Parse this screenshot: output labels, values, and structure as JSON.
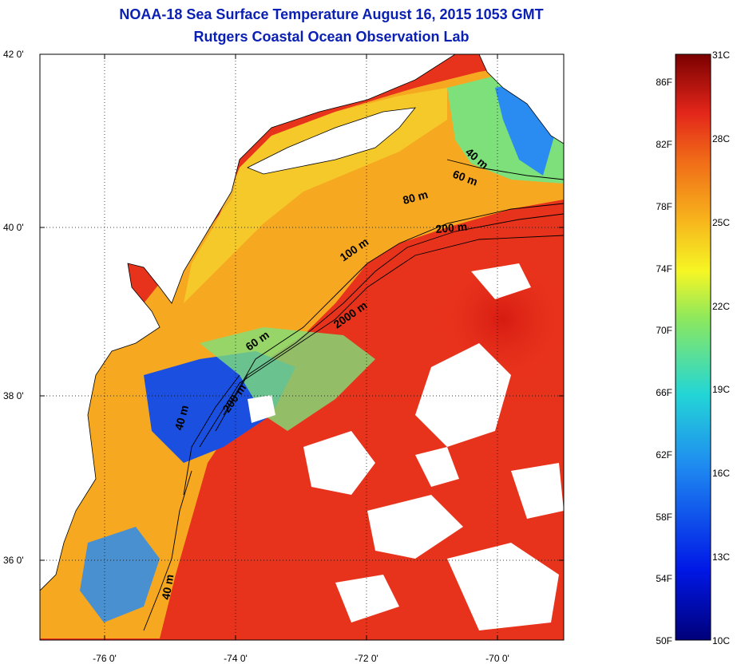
{
  "title": "NOAA-18 Sea Surface Temperature August 16, 2015 1053 GMT",
  "subtitle": "Rutgers Coastal Ocean Observation Lab",
  "axes": {
    "lat_labels": [
      "42 0'",
      "40 0'",
      "38 0'",
      "36 0'"
    ],
    "lon_labels": [
      "-76 0'",
      "-74 0'",
      "-72 0'",
      "-70 0'"
    ]
  },
  "isobaths": [
    "40 m",
    "60 m",
    "80 m",
    "200 m",
    "100 m",
    "2000 m",
    "60 m",
    "200 m",
    "40 m",
    "40 m"
  ],
  "colorbar": {
    "fahrenheit": [
      "86F",
      "82F",
      "78F",
      "74F",
      "70F",
      "66F",
      "62F",
      "58F",
      "54F",
      "50F"
    ],
    "celsius": [
      "31C",
      "28C",
      "25C",
      "22C",
      "19C",
      "16C",
      "13C",
      "10C"
    ]
  },
  "colors": {
    "title": "#0a1fb4",
    "warm": "#e8331c",
    "shelf": "#f7a821",
    "cool": "#2a8cf0",
    "land": "#ffffff"
  }
}
